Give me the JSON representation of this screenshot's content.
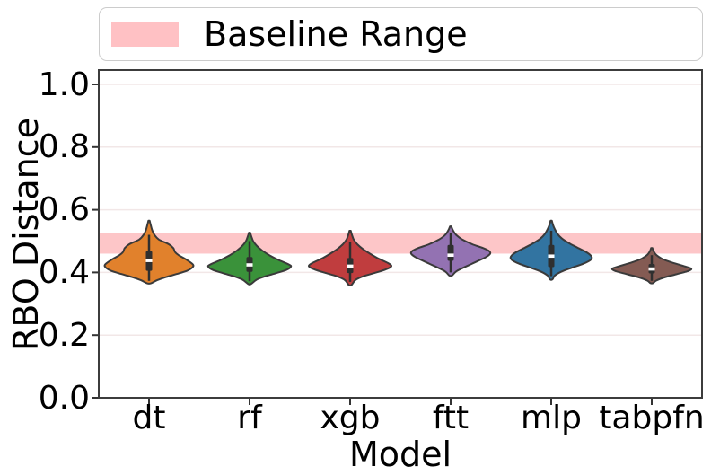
{
  "legend": {
    "label": "Baseline Range",
    "swatch_color": "#ffc1c4"
  },
  "chart_data": {
    "type": "violin",
    "title": "",
    "xlabel": "Model",
    "ylabel": "RBO Distance",
    "ylim": [
      0.0,
      1.05
    ],
    "yticks": [
      0.0,
      0.2,
      0.4,
      0.6,
      0.8,
      1.0
    ],
    "ytick_labels": [
      "0.0",
      "0.2",
      "0.4",
      "0.6",
      "0.8",
      "1.0"
    ],
    "categories": [
      "dt",
      "rf",
      "xgb",
      "ftt",
      "mlp",
      "tabpfn"
    ],
    "grid": "faint horizontal lines at each y tick",
    "legend_position": "top, outside axes, full width",
    "baseline_range": [
      0.46,
      0.527
    ],
    "baseline_color": "#fdc6c8",
    "series": [
      {
        "name": "dt",
        "color": "#e1812c",
        "median": 0.438,
        "q1": 0.405,
        "q3": 0.468,
        "whisker_low": 0.373,
        "whisker_high": 0.52,
        "min": 0.365,
        "max": 0.565,
        "profile": [
          [
            0.565,
            0.7
          ],
          [
            0.55,
            2
          ],
          [
            0.535,
            3.5
          ],
          [
            0.52,
            6
          ],
          [
            0.505,
            11
          ],
          [
            0.49,
            22
          ],
          [
            0.478,
            27
          ],
          [
            0.465,
            29
          ],
          [
            0.455,
            33
          ],
          [
            0.44,
            42
          ],
          [
            0.425,
            49
          ],
          [
            0.415,
            48
          ],
          [
            0.405,
            42
          ],
          [
            0.395,
            31
          ],
          [
            0.385,
            19
          ],
          [
            0.375,
            9
          ],
          [
            0.365,
            2
          ]
        ]
      },
      {
        "name": "rf",
        "color": "#3a923a",
        "median": 0.424,
        "q1": 0.402,
        "q3": 0.449,
        "whisker_low": 0.372,
        "whisker_high": 0.5,
        "min": 0.363,
        "max": 0.527,
        "profile": [
          [
            0.527,
            0.7
          ],
          [
            0.515,
            2
          ],
          [
            0.5,
            4
          ],
          [
            0.485,
            8
          ],
          [
            0.47,
            14
          ],
          [
            0.455,
            22
          ],
          [
            0.44,
            32
          ],
          [
            0.425,
            44
          ],
          [
            0.418,
            46
          ],
          [
            0.408,
            41
          ],
          [
            0.398,
            30
          ],
          [
            0.388,
            18
          ],
          [
            0.377,
            8
          ],
          [
            0.363,
            1.5
          ]
        ]
      },
      {
        "name": "xgb",
        "color": "#c03d3e",
        "median": 0.42,
        "q1": 0.398,
        "q3": 0.446,
        "whisker_low": 0.37,
        "whisker_high": 0.498,
        "min": 0.36,
        "max": 0.533,
        "profile": [
          [
            0.533,
            0.7
          ],
          [
            0.52,
            2
          ],
          [
            0.505,
            4
          ],
          [
            0.49,
            8
          ],
          [
            0.475,
            14
          ],
          [
            0.46,
            22
          ],
          [
            0.445,
            31
          ],
          [
            0.43,
            42
          ],
          [
            0.42,
            46
          ],
          [
            0.41,
            40
          ],
          [
            0.398,
            27
          ],
          [
            0.388,
            15
          ],
          [
            0.376,
            6
          ],
          [
            0.36,
            1.5
          ]
        ]
      },
      {
        "name": "ftt",
        "color": "#9372b2",
        "median": 0.455,
        "q1": 0.437,
        "q3": 0.488,
        "whisker_low": 0.4,
        "whisker_high": 0.525,
        "min": 0.39,
        "max": 0.547,
        "profile": [
          [
            0.547,
            0.7
          ],
          [
            0.535,
            2.5
          ],
          [
            0.52,
            6
          ],
          [
            0.505,
            13
          ],
          [
            0.49,
            24
          ],
          [
            0.478,
            36
          ],
          [
            0.468,
            43
          ],
          [
            0.46,
            44
          ],
          [
            0.45,
            40
          ],
          [
            0.44,
            33
          ],
          [
            0.428,
            24
          ],
          [
            0.415,
            14
          ],
          [
            0.403,
            6
          ],
          [
            0.39,
            1.5
          ]
        ]
      },
      {
        "name": "mlp",
        "color": "#3274a1",
        "median": 0.452,
        "q1": 0.417,
        "q3": 0.488,
        "whisker_low": 0.388,
        "whisker_high": 0.533,
        "min": 0.378,
        "max": 0.565,
        "profile": [
          [
            0.565,
            0.7
          ],
          [
            0.552,
            2
          ],
          [
            0.538,
            4
          ],
          [
            0.523,
            7
          ],
          [
            0.508,
            12
          ],
          [
            0.493,
            20
          ],
          [
            0.478,
            30
          ],
          [
            0.463,
            40
          ],
          [
            0.45,
            45
          ],
          [
            0.44,
            44
          ],
          [
            0.428,
            36
          ],
          [
            0.415,
            23
          ],
          [
            0.402,
            11
          ],
          [
            0.39,
            4
          ],
          [
            0.378,
            1.5
          ]
        ]
      },
      {
        "name": "tabpfn",
        "color": "#845b53",
        "median": 0.411,
        "q1": 0.397,
        "q3": 0.427,
        "whisker_low": 0.373,
        "whisker_high": 0.455,
        "min": 0.366,
        "max": 0.478,
        "profile": [
          [
            0.478,
            0.7
          ],
          [
            0.468,
            2
          ],
          [
            0.456,
            5
          ],
          [
            0.444,
            11
          ],
          [
            0.432,
            22
          ],
          [
            0.42,
            36
          ],
          [
            0.412,
            44
          ],
          [
            0.404,
            40
          ],
          [
            0.394,
            27
          ],
          [
            0.384,
            14
          ],
          [
            0.374,
            5
          ],
          [
            0.366,
            1.5
          ]
        ]
      }
    ]
  }
}
